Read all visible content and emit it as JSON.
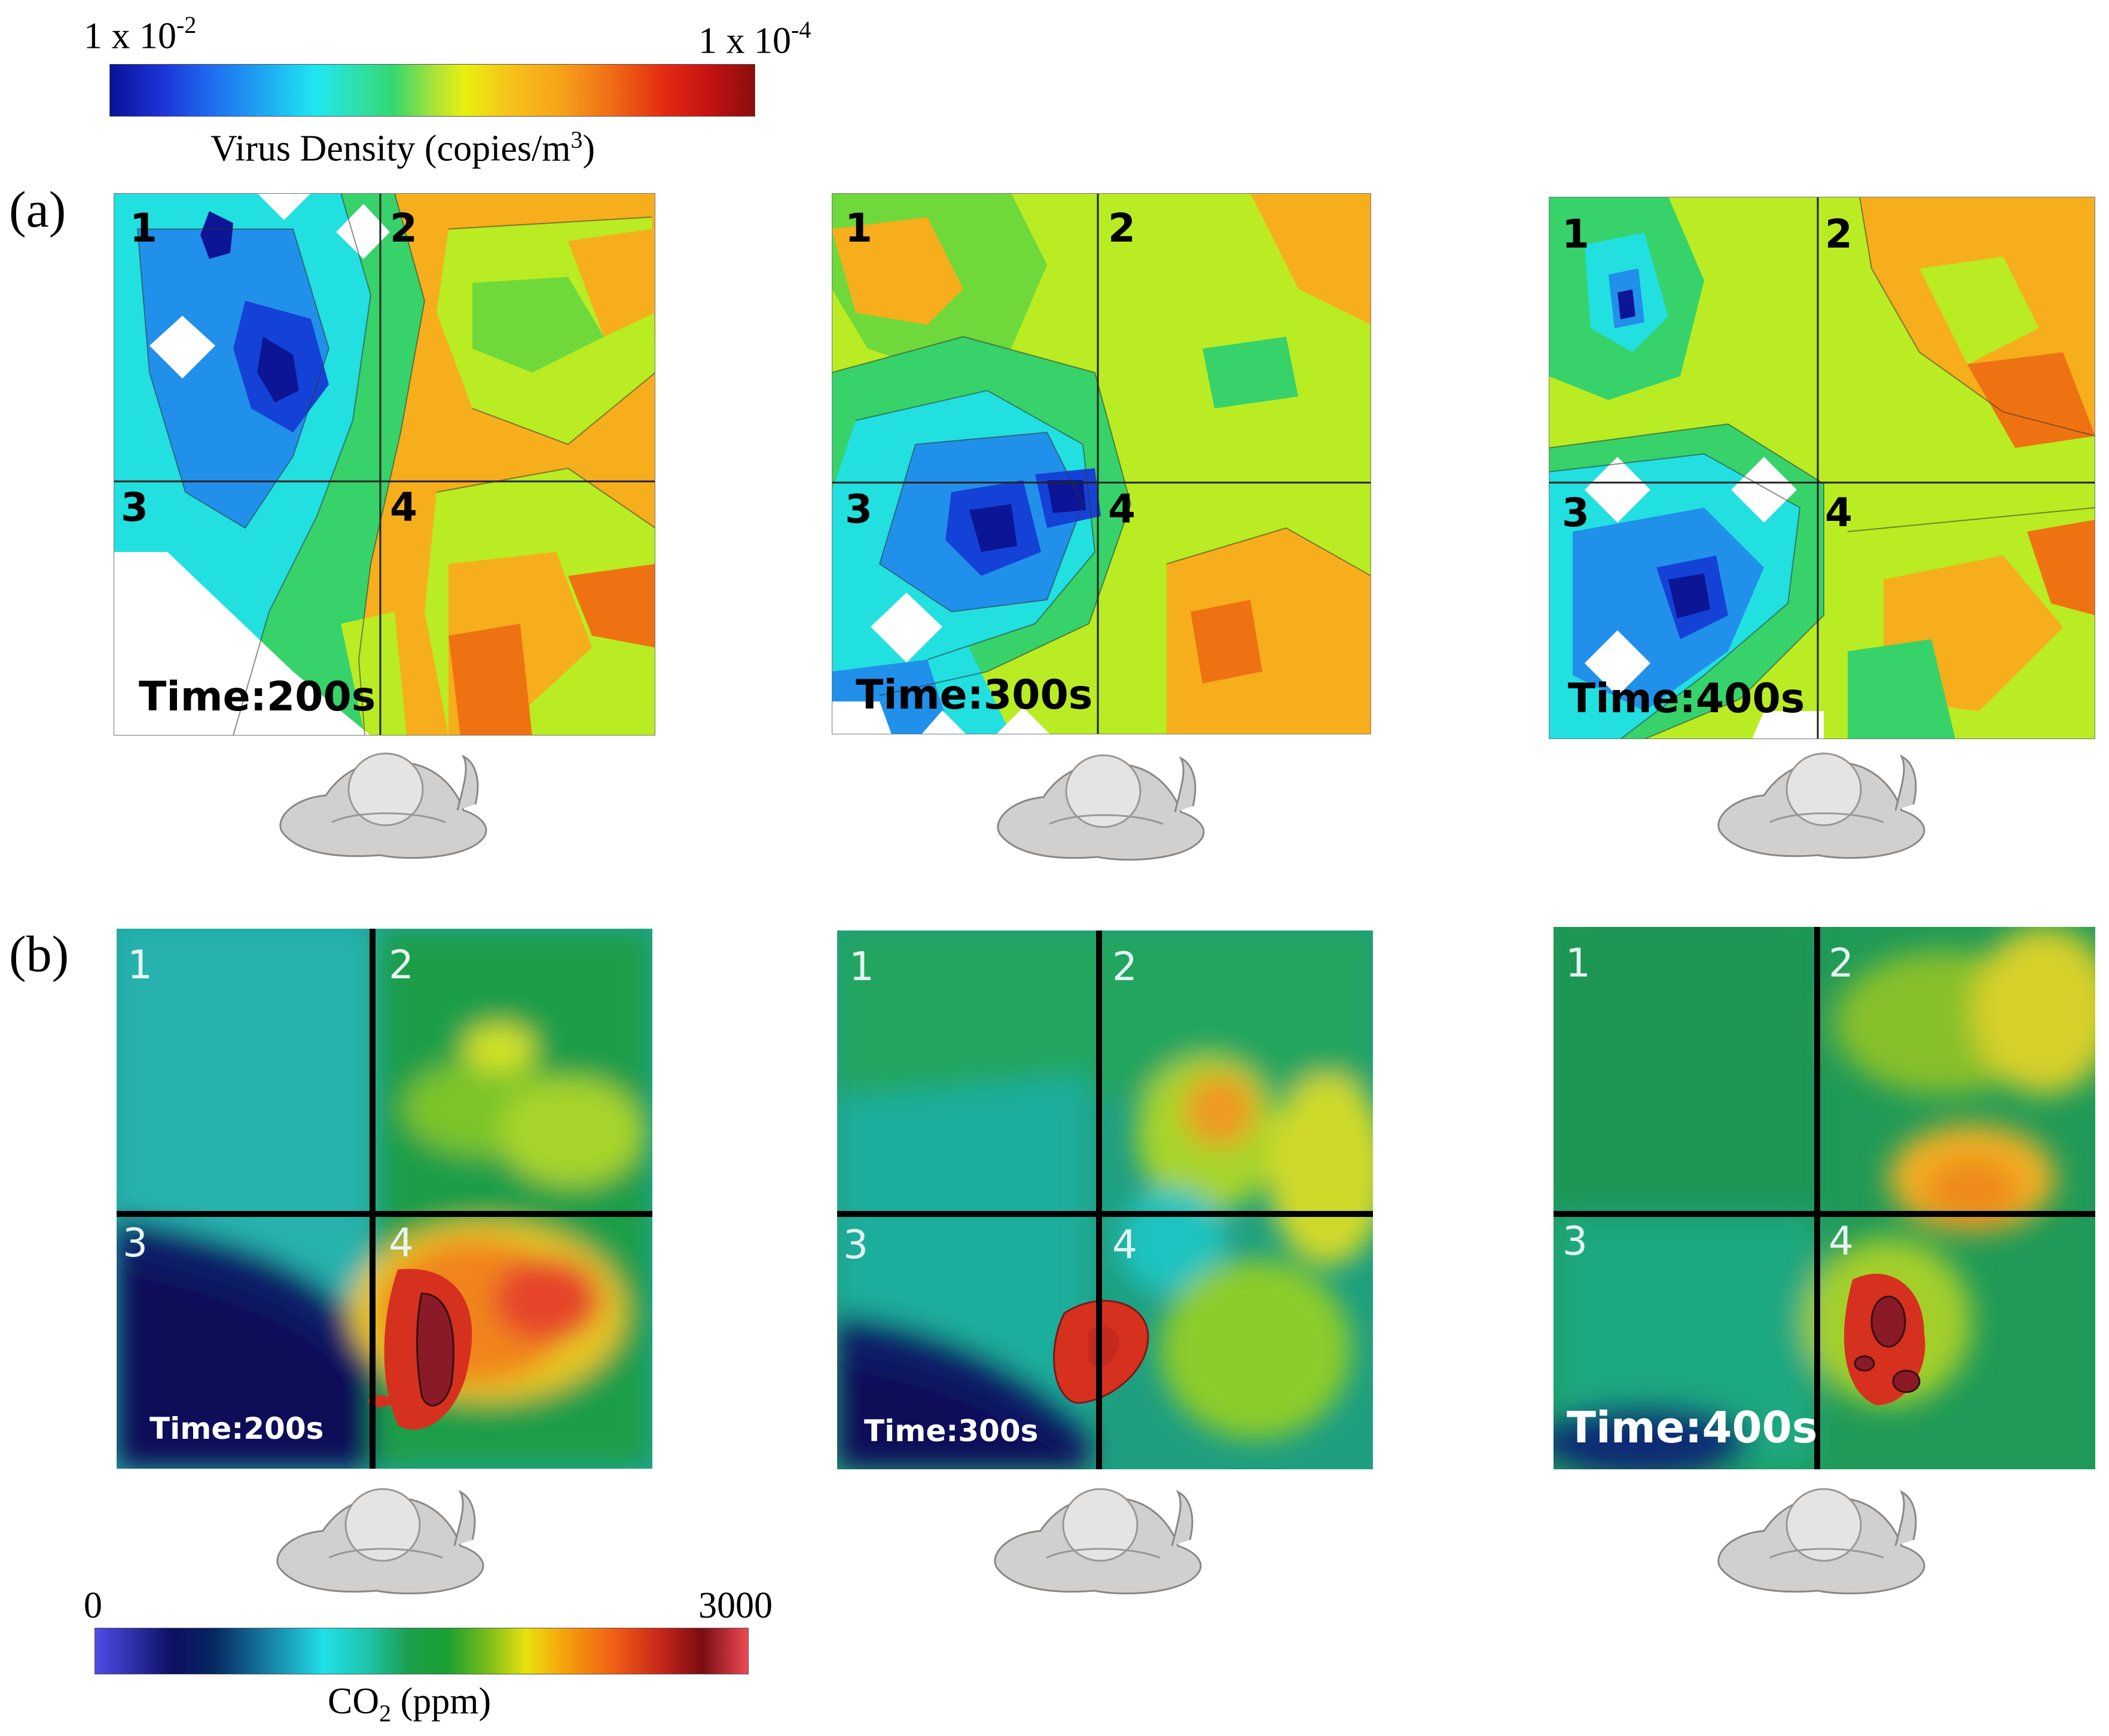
{
  "virus_colorbar": {
    "left_label": "1 x 10",
    "left_exp": "-2",
    "right_label": "1 x 10",
    "right_exp": "-4",
    "title": "Virus Density (copies/m",
    "title_sup": "3",
    "title_end": ")"
  },
  "co2_colorbar": {
    "min_label": "0",
    "max_label": "3000",
    "title_pre": "CO",
    "title_sub": "2",
    "title_post": " (ppm)"
  },
  "panel_a": {
    "tag": "(a)",
    "quadrants": [
      "1",
      "2",
      "3",
      "4"
    ],
    "times": [
      "Time:200s",
      "Time:300s",
      "Time:400s"
    ]
  },
  "panel_b": {
    "tag": "(b)",
    "quadrants": [
      "1",
      "2",
      "3",
      "4"
    ],
    "times": [
      "Time:200s",
      "Time:300s",
      "Time:400s"
    ]
  },
  "colors": {
    "deep_blue": "#0c1a9e",
    "blue": "#1f63e6",
    "cyan": "#22e0ee",
    "teal_green": "#2fd48a",
    "green": "#6fd83a",
    "yellow_green": "#c6ef1c",
    "orange": "#f7a71c",
    "red": "#e4471c",
    "co2_navy": "#070f5a",
    "co2_teal": "#1fb5a8",
    "co2_green": "#229e45",
    "co2_red": "#d6321c"
  }
}
